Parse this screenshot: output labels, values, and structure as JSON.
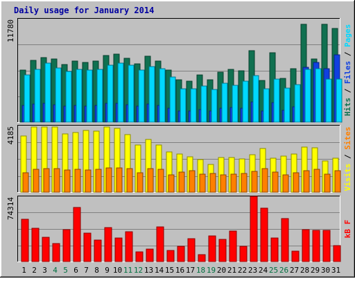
{
  "title": "Daily usage for January 2014",
  "colors": {
    "outer_bg": "#c0c0c0",
    "plot_bg": "#c0c0c0",
    "title": "#0000a0",
    "hits": "#107050",
    "files": "#1040e0",
    "pages": "#00d8ff",
    "visits": "#ffff00",
    "sites": "#ff8000",
    "kbytes": "#ff0000",
    "weekend_day": "#007040",
    "weekday": "#000000"
  },
  "chart_data": [
    {
      "type": "bar",
      "title": "Daily usage for January 2014",
      "ylabel_max": "11780",
      "legend": [
        {
          "name": "Hits",
          "color": "#107050"
        },
        {
          "name": "Files",
          "color": "#1040e0"
        },
        {
          "name": "Pages",
          "color": "#00d8ff"
        }
      ],
      "legend_separator": " / ",
      "ylim": [
        0,
        11780
      ],
      "categories": [
        "1",
        "2",
        "3",
        "4",
        "5",
        "6",
        "7",
        "8",
        "9",
        "10",
        "11",
        "12",
        "13",
        "14",
        "15",
        "16",
        "17",
        "18",
        "19",
        "20",
        "21",
        "22",
        "23",
        "24",
        "25",
        "26",
        "27",
        "28",
        "29",
        "30",
        "31"
      ],
      "series": [
        {
          "name": "Hits",
          "values": [
            5900,
            7020,
            7380,
            7190,
            6590,
            6960,
            6790,
            6960,
            7600,
            7780,
            7310,
            6660,
            7500,
            6930,
            5950,
            4830,
            4660,
            5370,
            4800,
            5720,
            6000,
            5830,
            8150,
            4730,
            7890,
            4950,
            6060,
            11130,
            7200,
            11180,
            10680
          ]
        },
        {
          "name": "Files",
          "values": [
            1900,
            2050,
            2100,
            2000,
            1800,
            1900,
            1850,
            1900,
            2100,
            2150,
            2000,
            1800,
            2050,
            1900,
            1600,
            1300,
            1250,
            1450,
            1300,
            1550,
            1650,
            1600,
            2300,
            1300,
            2200,
            1350,
            1700,
            6240,
            6800,
            6080,
            7630
          ]
        },
        {
          "name": "Pages",
          "values": [
            5400,
            6000,
            6700,
            6200,
            5800,
            6000,
            5900,
            6000,
            6500,
            6700,
            6500,
            5900,
            6300,
            6100,
            5100,
            3800,
            3800,
            4100,
            3700,
            4400,
            4200,
            4700,
            5300,
            3800,
            4900,
            3900,
            4300,
            6040,
            6080,
            4940,
            4940
          ]
        }
      ]
    },
    {
      "type": "bar",
      "ylabel_max": "4185",
      "legend": [
        {
          "name": "Visits",
          "color": "#ffff00"
        },
        {
          "name": "Sites",
          "color": "#ff8000"
        }
      ],
      "legend_separator": " / ",
      "ylim": [
        0,
        4185
      ],
      "categories": [
        "1",
        "2",
        "3",
        "4",
        "5",
        "6",
        "7",
        "8",
        "9",
        "10",
        "11",
        "12",
        "13",
        "14",
        "15",
        "16",
        "17",
        "18",
        "19",
        "20",
        "21",
        "22",
        "23",
        "24",
        "25",
        "26",
        "27",
        "28",
        "29",
        "30",
        "31"
      ],
      "series": [
        {
          "name": "Visits",
          "values": [
            3520,
            4080,
            4080,
            4080,
            3670,
            3770,
            3870,
            3820,
            4080,
            4030,
            3620,
            2950,
            3310,
            2950,
            2550,
            2410,
            2240,
            2040,
            1730,
            2190,
            2190,
            2100,
            2340,
            2750,
            2140,
            2270,
            2390,
            2850,
            2790,
            1950,
            2140
          ]
        },
        {
          "name": "Sites",
          "values": [
            1220,
            1430,
            1480,
            1480,
            1380,
            1430,
            1380,
            1430,
            1530,
            1530,
            1480,
            1220,
            1480,
            1430,
            1070,
            1270,
            1330,
            1120,
            1180,
            1070,
            1120,
            1170,
            1320,
            1480,
            1270,
            1070,
            1220,
            1330,
            1430,
            1120,
            1330
          ]
        }
      ]
    },
    {
      "type": "bar",
      "ylabel_max": "74314",
      "legend": [
        {
          "name": "KBytes",
          "label": "kB F",
          "color": "#ff0000"
        }
      ],
      "legend_separator": "",
      "ylim": [
        0,
        74314
      ],
      "categories": [
        "1",
        "2",
        "3",
        "4",
        "5",
        "6",
        "7",
        "8",
        "9",
        "10",
        "11",
        "12",
        "13",
        "14",
        "15",
        "16",
        "17",
        "18",
        "19",
        "20",
        "21",
        "22",
        "23",
        "24",
        "25",
        "26",
        "27",
        "28",
        "29",
        "30",
        "31"
      ],
      "series": [
        {
          "name": "KBytes",
          "values": [
            47920,
            37800,
            27500,
            20500,
            36500,
            62000,
            32100,
            24200,
            38800,
            26500,
            34300,
            10900,
            14200,
            39700,
            12300,
            17700,
            26300,
            7650,
            29500,
            25400,
            35000,
            17500,
            74300,
            61100,
            26800,
            48900,
            11700,
            36400,
            35600,
            35600,
            18400
          ]
        }
      ]
    }
  ],
  "x_labels": [
    {
      "text": "1",
      "weekend": false
    },
    {
      "text": "2",
      "weekend": false
    },
    {
      "text": "3",
      "weekend": false
    },
    {
      "text": "4",
      "weekend": true
    },
    {
      "text": "5",
      "weekend": true
    },
    {
      "text": "6",
      "weekend": false
    },
    {
      "text": "7",
      "weekend": false
    },
    {
      "text": "8",
      "weekend": false
    },
    {
      "text": "9",
      "weekend": false
    },
    {
      "text": "10",
      "weekend": false
    },
    {
      "text": "11",
      "weekend": true
    },
    {
      "text": "12",
      "weekend": true
    },
    {
      "text": "13",
      "weekend": false
    },
    {
      "text": "14",
      "weekend": false
    },
    {
      "text": "15",
      "weekend": false
    },
    {
      "text": "16",
      "weekend": false
    },
    {
      "text": "17",
      "weekend": false
    },
    {
      "text": "18",
      "weekend": true
    },
    {
      "text": "19",
      "weekend": true
    },
    {
      "text": "20",
      "weekend": false
    },
    {
      "text": "21",
      "weekend": false
    },
    {
      "text": "22",
      "weekend": false
    },
    {
      "text": "23",
      "weekend": false
    },
    {
      "text": "24",
      "weekend": false
    },
    {
      "text": "25",
      "weekend": true
    },
    {
      "text": "26",
      "weekend": true
    },
    {
      "text": "27",
      "weekend": false
    },
    {
      "text": "28",
      "weekend": false
    },
    {
      "text": "29",
      "weekend": false
    },
    {
      "text": "30",
      "weekend": false
    },
    {
      "text": "31",
      "weekend": false
    }
  ]
}
